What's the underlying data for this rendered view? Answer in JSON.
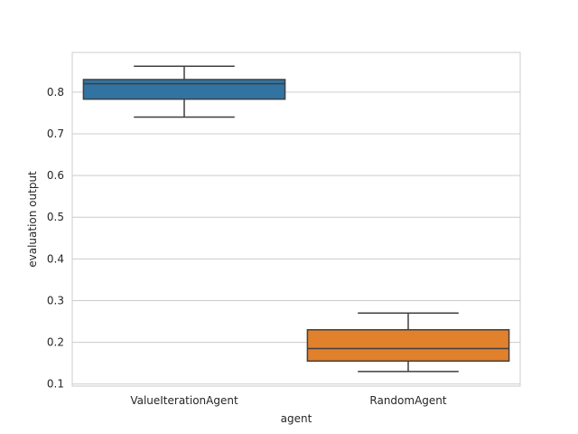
{
  "chart_data": {
    "type": "box",
    "title": "",
    "xlabel": "agent",
    "ylabel": "evaluation output",
    "ylim": [
      0.095,
      0.895
    ],
    "yticks": [
      0.1,
      0.2,
      0.3,
      0.4,
      0.5,
      0.6,
      0.7,
      0.8
    ],
    "grid": "horizontal",
    "categories": [
      "ValueIterationAgent",
      "RandomAgent"
    ],
    "boxes": [
      {
        "category": "ValueIterationAgent",
        "whisker_low": 0.74,
        "q1": 0.783,
        "median": 0.82,
        "q3": 0.83,
        "whisker_high": 0.862,
        "color": "#3274a1"
      },
      {
        "category": "RandomAgent",
        "whisker_low": 0.13,
        "q1": 0.155,
        "median": 0.185,
        "q3": 0.23,
        "whisker_high": 0.27,
        "color": "#e1812c"
      }
    ]
  }
}
